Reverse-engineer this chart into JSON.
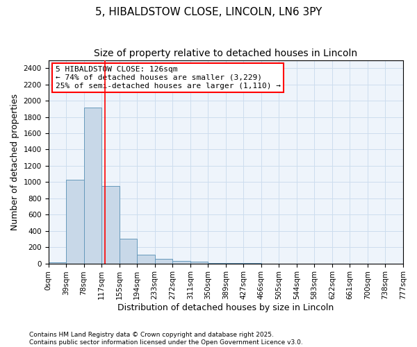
{
  "title_line1": "5, HIBALDSTOW CLOSE, LINCOLN, LN6 3PY",
  "title_line2": "Size of property relative to detached houses in Lincoln",
  "xlabel": "Distribution of detached houses by size in Lincoln",
  "ylabel": "Number of detached properties",
  "bar_values": [
    10,
    1030,
    1920,
    950,
    300,
    110,
    55,
    30,
    20,
    5,
    2,
    1,
    0,
    0,
    0,
    0,
    0,
    0,
    0,
    0
  ],
  "bin_labels": [
    "0sqm",
    "39sqm",
    "78sqm",
    "117sqm",
    "155sqm",
    "194sqm",
    "233sqm",
    "272sqm",
    "311sqm",
    "350sqm",
    "389sqm",
    "427sqm",
    "466sqm",
    "505sqm",
    "544sqm",
    "583sqm",
    "622sqm",
    "661sqm",
    "700sqm",
    "738sqm",
    "777sqm"
  ],
  "bar_color": "#c8d8e8",
  "bar_edge_color": "#6699bb",
  "grid_color": "#ccddee",
  "background_color": "#eef4fb",
  "red_line_x": 3.18,
  "annotation_box_text": "5 HIBALDSTOW CLOSE: 126sqm\n← 74% of detached houses are smaller (3,229)\n25% of semi-detached houses are larger (1,110) →",
  "ylim": [
    0,
    2500
  ],
  "yticks": [
    0,
    200,
    400,
    600,
    800,
    1000,
    1200,
    1400,
    1600,
    1800,
    2000,
    2200,
    2400
  ],
  "footer_text": "Contains HM Land Registry data © Crown copyright and database right 2025.\nContains public sector information licensed under the Open Government Licence v3.0.",
  "title_fontsize": 11,
  "subtitle_fontsize": 10,
  "axis_label_fontsize": 9,
  "tick_fontsize": 7.5,
  "annotation_fontsize": 8
}
